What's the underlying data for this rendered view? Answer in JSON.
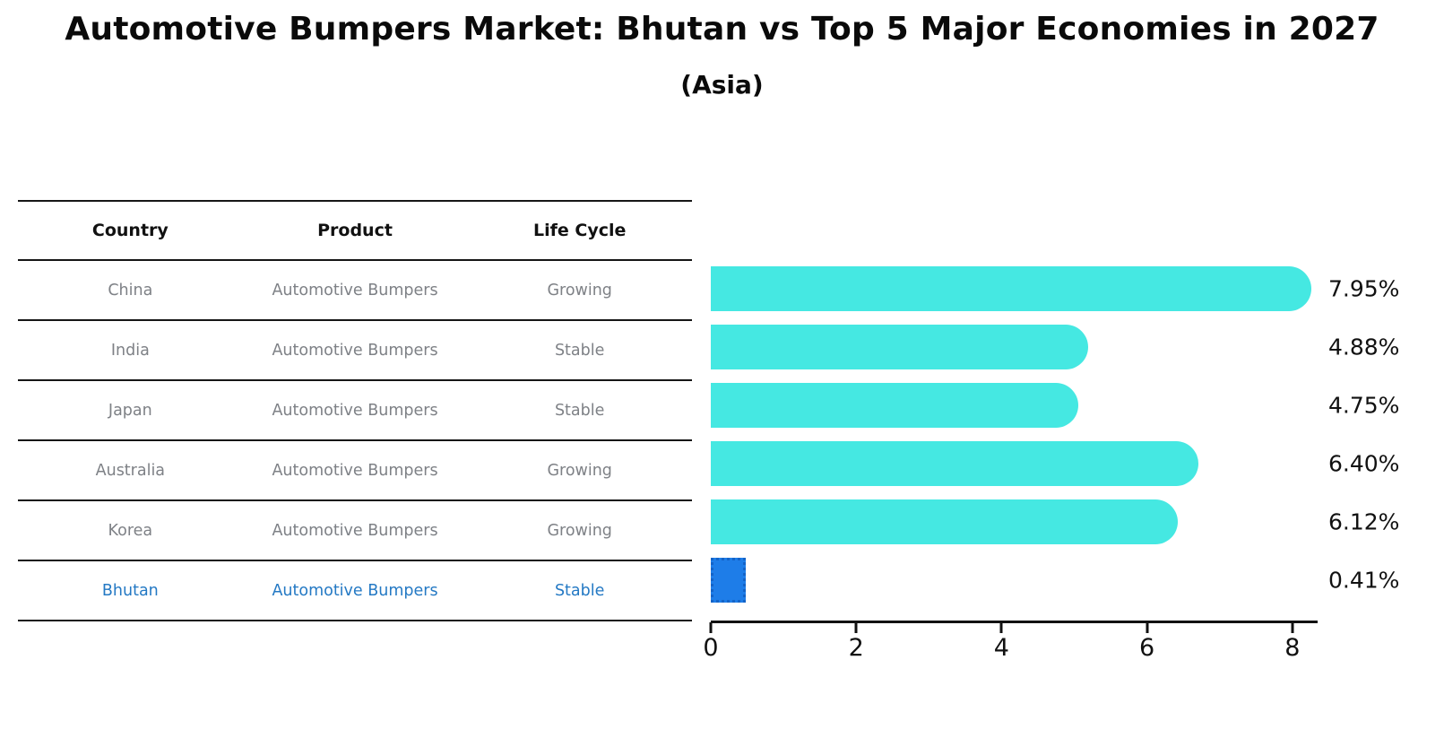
{
  "title": "Automotive Bumpers Market: Bhutan vs Top 5 Major Economies in 2027",
  "subtitle": "(Asia)",
  "table": {
    "headers": [
      "Country",
      "Product",
      "Life Cycle"
    ],
    "rows": [
      {
        "country": "China",
        "product": "Automotive Bumpers",
        "life_cycle": "Growing",
        "highlight": false
      },
      {
        "country": "India",
        "product": "Automotive Bumpers",
        "life_cycle": "Stable",
        "highlight": false
      },
      {
        "country": "Japan",
        "product": "Automotive Bumpers",
        "life_cycle": "Stable",
        "highlight": false
      },
      {
        "country": "Australia",
        "product": "Automotive Bumpers",
        "life_cycle": "Growing",
        "highlight": false
      },
      {
        "country": "Korea",
        "product": "Automotive Bumpers",
        "life_cycle": "Growing",
        "highlight": false
      },
      {
        "country": "Bhutan",
        "product": "Automotive Bumpers",
        "life_cycle": "Stable",
        "highlight": true
      }
    ]
  },
  "chart_data": {
    "type": "bar",
    "orientation": "horizontal",
    "title": "Automotive Bumpers Market: Bhutan vs Top 5 Major Economies in 2027",
    "subtitle": "(Asia)",
    "categories": [
      "China",
      "India",
      "Japan",
      "Australia",
      "Korea",
      "Bhutan"
    ],
    "values": [
      7.95,
      4.88,
      4.75,
      6.4,
      6.12,
      0.41
    ],
    "value_labels": [
      "7.95%",
      "4.88%",
      "4.75%",
      "6.40%",
      "6.12%",
      "0.41%"
    ],
    "unit": "%",
    "xticks": [
      0,
      2,
      4,
      6,
      8
    ],
    "xlim": [
      0,
      8.35
    ],
    "grid": false,
    "legend": "none",
    "highlight_index": 5
  },
  "colors": {
    "bar_color": "#45e8e2",
    "highlight_fill": "#1e7de8",
    "highlight_border": "#1464c8",
    "highlight_text": "#2479c4",
    "text": "#111111",
    "muted_text": "#7e8186"
  }
}
